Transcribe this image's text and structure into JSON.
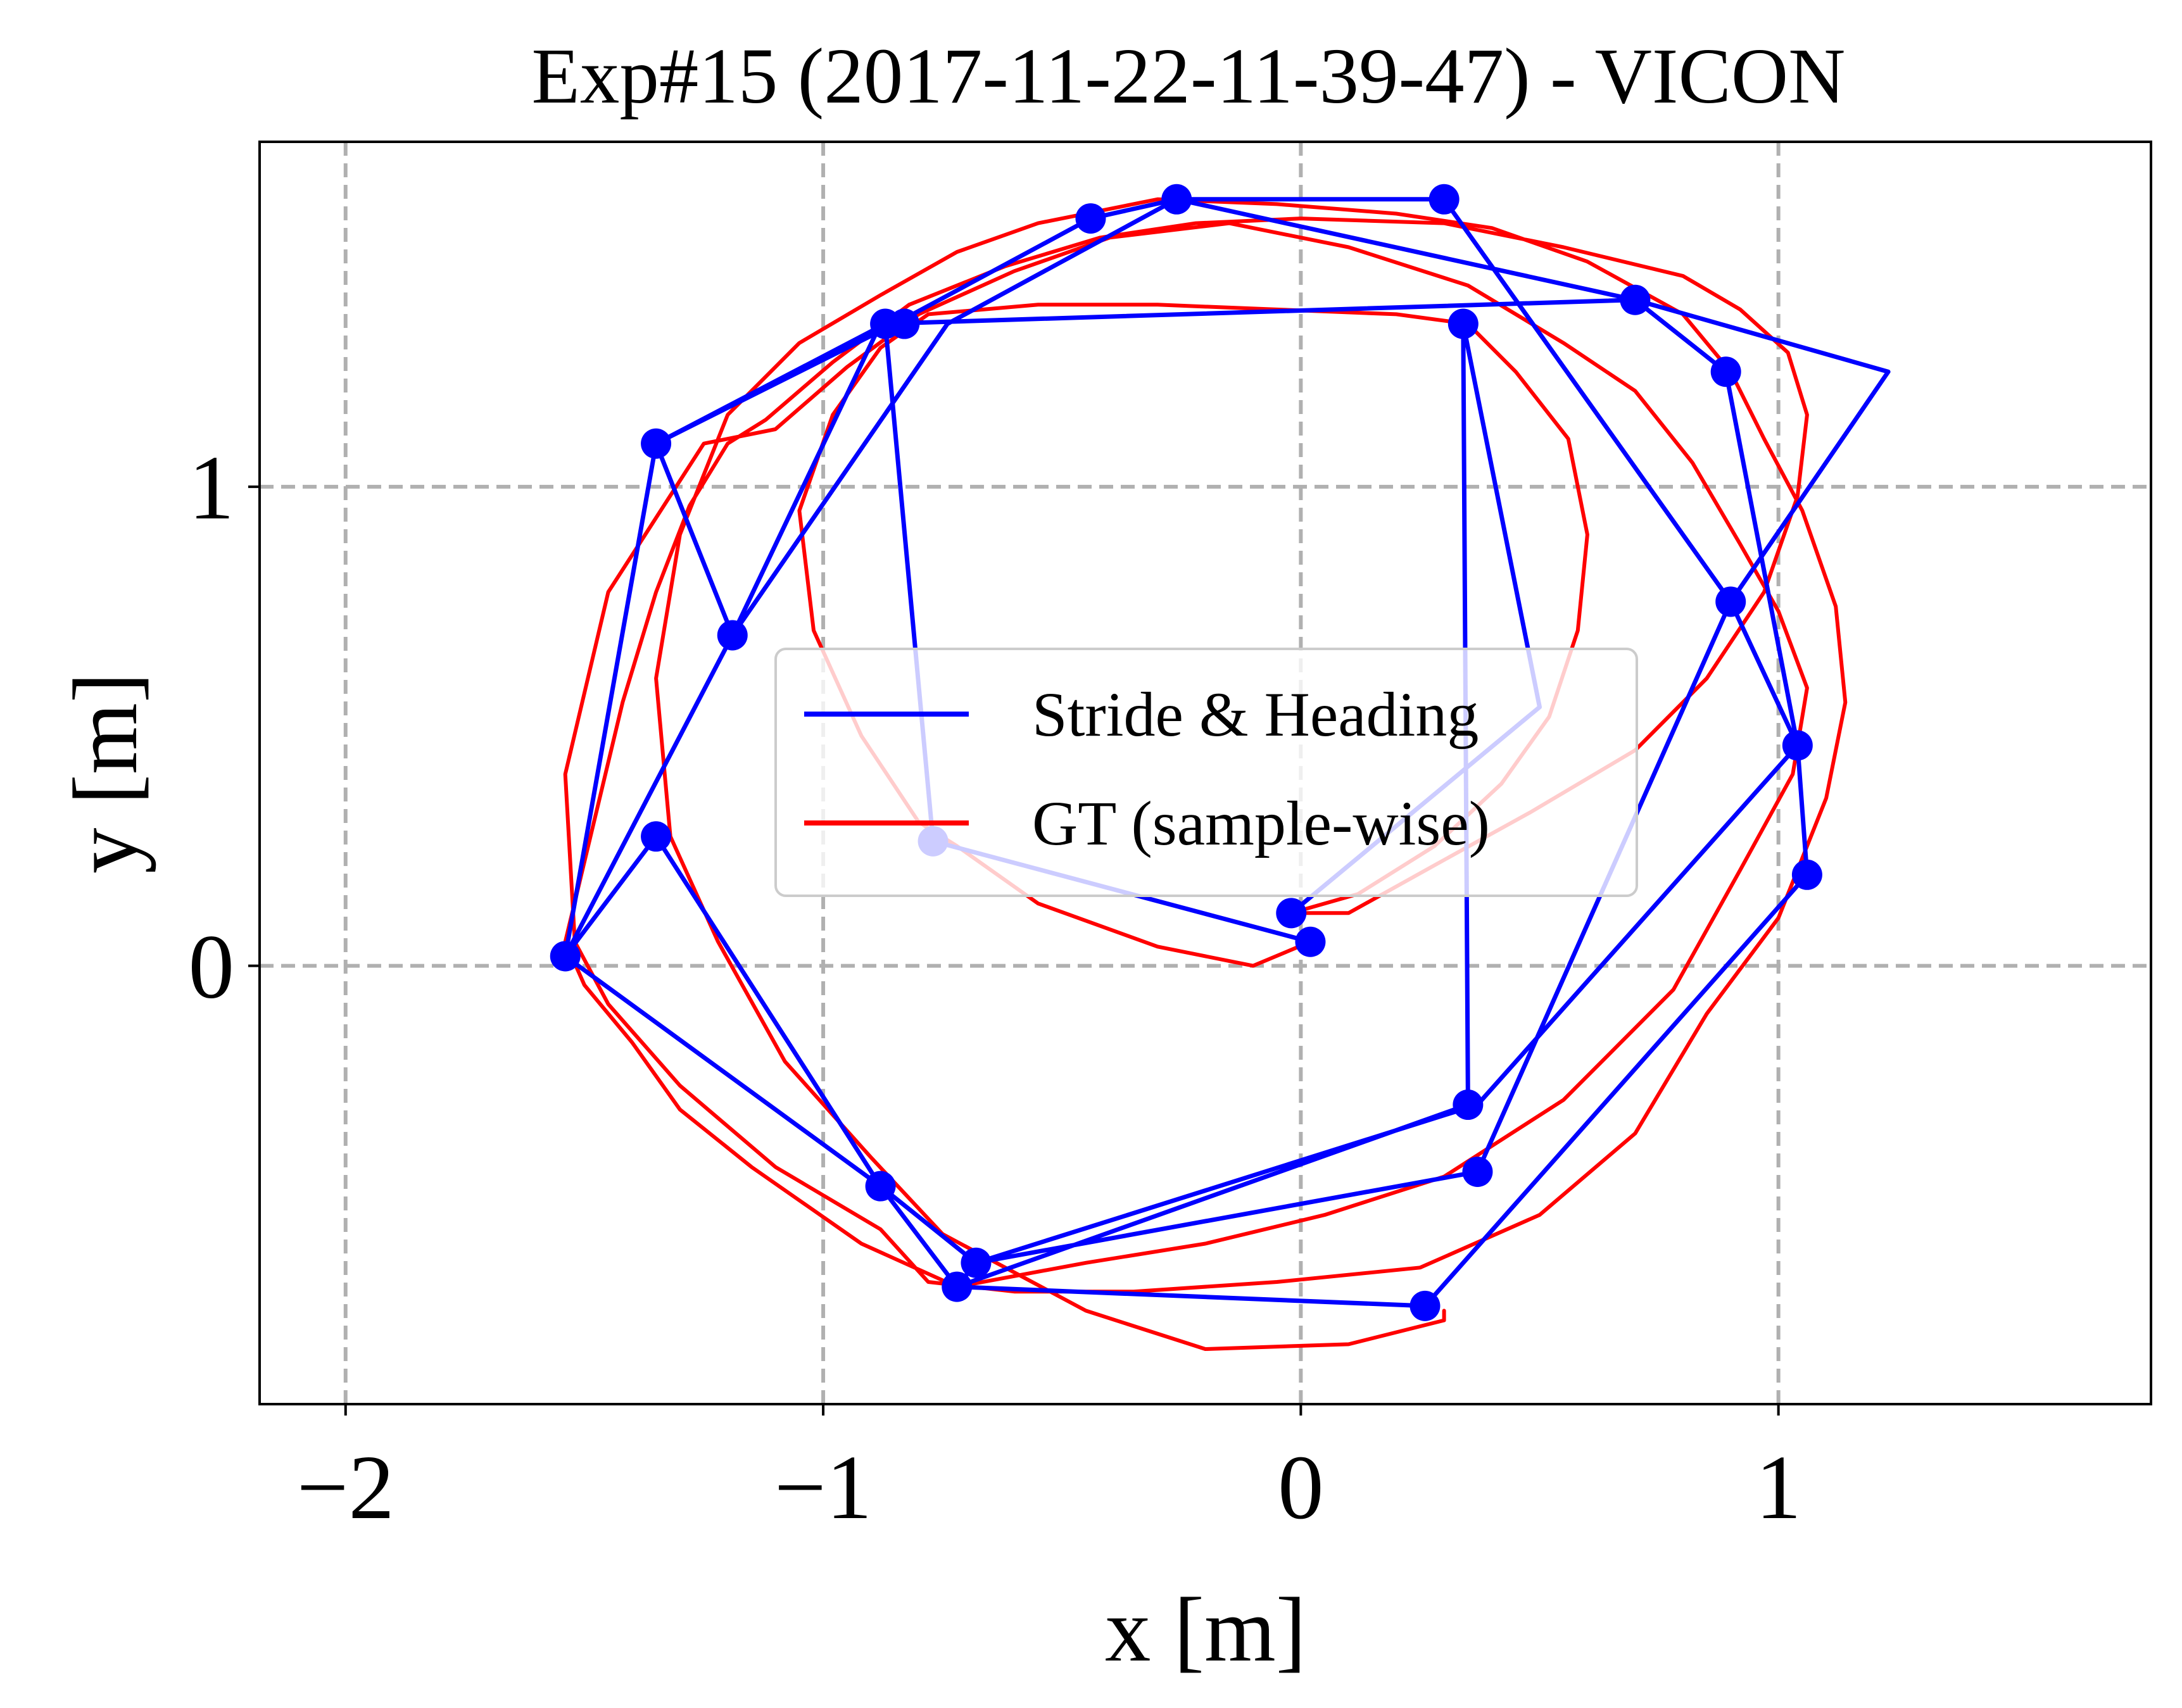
{
  "chart_data": {
    "type": "line",
    "title": "Exp#15 (2017-11-22-11-39-47) - VICON",
    "xlabel": "x [m]",
    "ylabel": "y [m]",
    "xlim": [
      -2.18,
      1.78
    ],
    "ylim": [
      -0.915,
      1.72
    ],
    "xticks": [
      -2,
      -1,
      0,
      1
    ],
    "xtick_labels": [
      "−2",
      "−1",
      "0",
      "1"
    ],
    "yticks": [
      0,
      1
    ],
    "ytick_labels": [
      "0",
      "1"
    ],
    "grid": true,
    "legend_position": "center",
    "colors": {
      "stride": "#0000ff",
      "gt": "#ff0000",
      "grid": "#b0b0b0",
      "axes": "#000000"
    },
    "series": [
      {
        "name": "Stride & Heading",
        "color": "#0000ff",
        "markers": true,
        "x": [
          0.02,
          -0.77,
          -0.87,
          -1.35,
          -1.19,
          -1.54,
          -1.35,
          -0.88,
          -0.72,
          0.26,
          1.06,
          1.04,
          0.9,
          0.3,
          -0.26,
          -0.44,
          -0.85,
          -1.35,
          -1.54,
          -0.88,
          -0.68,
          0.37,
          0.9,
          1.23,
          0.7,
          -0.88,
          -1.19,
          -0.74,
          -0.26,
          0.7,
          0.89,
          1.04,
          0.37,
          -0.68,
          -0.72,
          0.35,
          0.34,
          0.5,
          -0.02
        ],
        "y": [
          0.05,
          0.26,
          1.34,
          1.09,
          0.69,
          0.02,
          0.27,
          -0.46,
          -0.67,
          -0.71,
          0.19,
          0.46,
          0.76,
          1.6,
          1.6,
          1.56,
          1.34,
          1.09,
          0.02,
          -0.46,
          -0.62,
          -0.43,
          0.76,
          1.24,
          1.39,
          1.34,
          0.69,
          1.34,
          1.6,
          1.39,
          1.24,
          0.46,
          -0.29,
          -0.62,
          -0.67,
          -0.29,
          1.34,
          0.54,
          0.11
        ],
        "marker_x": [
          0.02,
          -0.77,
          -0.87,
          -1.35,
          -1.19,
          -1.54,
          -1.35,
          -0.88,
          -0.72,
          0.26,
          1.06,
          1.04,
          0.9,
          0.3,
          -0.26,
          -0.44,
          -0.83,
          0.7,
          0.89,
          -0.68,
          0.37,
          0.35,
          0.34,
          -0.02
        ],
        "marker_y": [
          0.05,
          0.26,
          1.34,
          1.09,
          0.69,
          0.02,
          0.27,
          -0.46,
          -0.67,
          -0.71,
          0.19,
          0.46,
          0.76,
          1.6,
          1.6,
          1.56,
          1.34,
          1.39,
          1.24,
          -0.62,
          -0.43,
          -0.29,
          1.34,
          0.11
        ]
      },
      {
        "name": "GT (sample-wise)",
        "color": "#ff0000",
        "markers": false,
        "x": [
          0.02,
          -0.1,
          -0.3,
          -0.55,
          -0.72,
          -0.8,
          -0.92,
          -1.02,
          -1.05,
          -0.98,
          -0.88,
          -0.78,
          -0.55,
          -0.3,
          -0.05,
          0.2,
          0.35,
          0.45,
          0.56,
          0.6,
          0.58,
          0.52,
          0.42,
          0.28,
          0.12,
          -0.02,
          0.1,
          0.28,
          0.48,
          0.7,
          0.85,
          0.97,
          1.04,
          1.06,
          1.02,
          0.92,
          0.8,
          0.55,
          0.3,
          0.0,
          -0.22,
          -0.42,
          -0.62,
          -0.82,
          -0.98,
          -1.12,
          -1.2,
          -1.28,
          -1.35,
          -1.42,
          -1.48,
          -1.54,
          -1.5,
          -1.4,
          -1.3,
          -1.15,
          -0.92,
          -0.72,
          -0.45,
          -0.2,
          0.05,
          0.3,
          0.55,
          0.78,
          0.92,
          1.03,
          1.06,
          1.0,
          0.92,
          0.82,
          0.7,
          0.55,
          0.35,
          0.1,
          -0.15,
          -0.4,
          -0.6,
          -0.8,
          -0.95,
          -1.1,
          -1.25,
          -1.45,
          -1.54,
          -1.52,
          -1.45,
          -1.3,
          -1.1,
          -0.88,
          -0.78,
          -0.6,
          -0.35,
          -0.05,
          0.25,
          0.5,
          0.7,
          0.85,
          1.0,
          1.1,
          1.14,
          1.12,
          1.05,
          0.97,
          0.9,
          0.8,
          0.6,
          0.4,
          0.2,
          -0.05,
          -0.3,
          -0.55,
          -0.72,
          -0.88,
          -1.05,
          -1.2,
          -1.3,
          -1.35,
          -1.32,
          -1.22,
          -1.08,
          -0.9,
          -0.75,
          -0.45,
          -0.2,
          0.1,
          0.3,
          0.3
        ],
        "y": [
          0.05,
          0.0,
          0.04,
          0.13,
          0.25,
          0.3,
          0.48,
          0.7,
          0.95,
          1.15,
          1.29,
          1.36,
          1.38,
          1.38,
          1.37,
          1.36,
          1.34,
          1.24,
          1.1,
          0.9,
          0.7,
          0.52,
          0.38,
          0.25,
          0.15,
          0.11,
          0.11,
          0.21,
          0.32,
          0.45,
          0.6,
          0.78,
          0.98,
          1.15,
          1.28,
          1.37,
          1.44,
          1.5,
          1.55,
          1.56,
          1.55,
          1.52,
          1.46,
          1.38,
          1.26,
          1.14,
          1.09,
          0.96,
          0.78,
          0.55,
          0.3,
          0.05,
          -0.04,
          -0.16,
          -0.3,
          -0.42,
          -0.58,
          -0.67,
          -0.62,
          -0.58,
          -0.52,
          -0.44,
          -0.28,
          -0.05,
          0.2,
          0.4,
          0.58,
          0.74,
          0.88,
          1.05,
          1.2,
          1.3,
          1.42,
          1.5,
          1.55,
          1.52,
          1.45,
          1.36,
          1.25,
          1.12,
          1.09,
          0.78,
          0.4,
          0.05,
          -0.08,
          -0.25,
          -0.42,
          -0.55,
          -0.66,
          -0.68,
          -0.68,
          -0.66,
          -0.63,
          -0.52,
          -0.35,
          -0.1,
          0.1,
          0.35,
          0.55,
          0.75,
          0.95,
          1.1,
          1.24,
          1.36,
          1.47,
          1.54,
          1.57,
          1.59,
          1.6,
          1.55,
          1.49,
          1.4,
          1.3,
          1.15,
          0.9,
          0.6,
          0.27,
          0.05,
          -0.2,
          -0.4,
          -0.56,
          -0.72,
          -0.8,
          -0.79,
          -0.74,
          -0.72
        ]
      }
    ]
  }
}
